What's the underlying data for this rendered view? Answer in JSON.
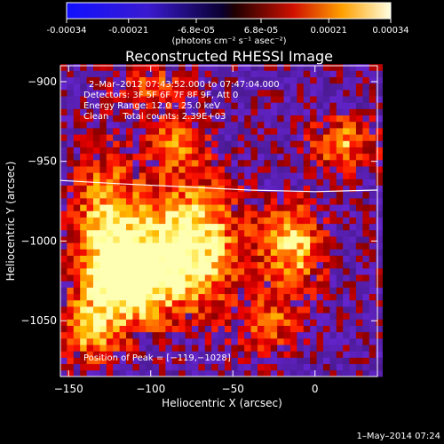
{
  "colorbar": {
    "ticks": [
      "-0.00034",
      "-0.00021",
      "-6.8e-05",
      "6.8e-05",
      "0.00021",
      "0.00034"
    ],
    "tick_values": [
      -0.00034,
      -0.00021,
      -6.8e-05,
      6.8e-05,
      0.00021,
      0.00034
    ],
    "range": [
      -0.00034,
      0.00034
    ],
    "units": "(photons cm⁻² s⁻¹ asec⁻²)"
  },
  "chart_data": {
    "type": "heatmap",
    "title": "Reconstructed RHESSI Image",
    "xlabel": "Heliocentric X (arcsec)",
    "ylabel": "Heliocentric Y (arcsec)",
    "xlim": [
      -155,
      38
    ],
    "ylim": [
      -1085,
      -890
    ],
    "xticks": [
      -150,
      -100,
      -50,
      0
    ],
    "yticks": [
      -900,
      -950,
      -1000,
      -1050
    ],
    "xtick_labels": [
      "−150",
      "−100",
      "−50",
      "0"
    ],
    "ytick_labels": [
      "−900",
      "−950",
      "−1000",
      "−1050"
    ],
    "colormap": "hot-blue diverging",
    "info_lines": [
      "2–Mar–2012 07:43:52.000 to 07:47:04.000",
      "Detectors: 3F 5F 6F 7F 8F 9F, Att 0",
      "Energy Range: 12.0 – 25.0 keV",
      "Clean     Total counts: 2.39E+03"
    ],
    "peak_label": "Position of Peak = [−119,−1028]",
    "peak": [
      -119,
      -1028
    ],
    "limb_curve": [
      [
        -155,
        -962
      ],
      [
        -120,
        -964
      ],
      [
        -80,
        -966
      ],
      [
        -40,
        -968
      ],
      [
        0,
        -969
      ],
      [
        38,
        -968
      ]
    ],
    "emission_blobs": [
      {
        "x": -80,
        "y": -1005,
        "sx": 22,
        "sy": 28,
        "amp": 1.0
      },
      {
        "x": -119,
        "y": -1028,
        "sx": 18,
        "sy": 20,
        "amp": 0.9
      },
      {
        "x": -130,
        "y": -985,
        "sx": 15,
        "sy": 30,
        "amp": 0.6
      },
      {
        "x": -15,
        "y": -1005,
        "sx": 14,
        "sy": 20,
        "amp": 0.7
      },
      {
        "x": 15,
        "y": -940,
        "sx": 14,
        "sy": 12,
        "amp": 0.6
      },
      {
        "x": -85,
        "y": -940,
        "sx": 12,
        "sy": 12,
        "amp": 0.55
      },
      {
        "x": -140,
        "y": -1060,
        "sx": 12,
        "sy": 14,
        "amp": 0.55
      },
      {
        "x": -30,
        "y": -1055,
        "sx": 14,
        "sy": 14,
        "amp": 0.45
      },
      {
        "x": -100,
        "y": -905,
        "sx": 16,
        "sy": 10,
        "amp": 0.4
      }
    ]
  },
  "footer": {
    "timestamp": "1–May–2014 07:24"
  }
}
